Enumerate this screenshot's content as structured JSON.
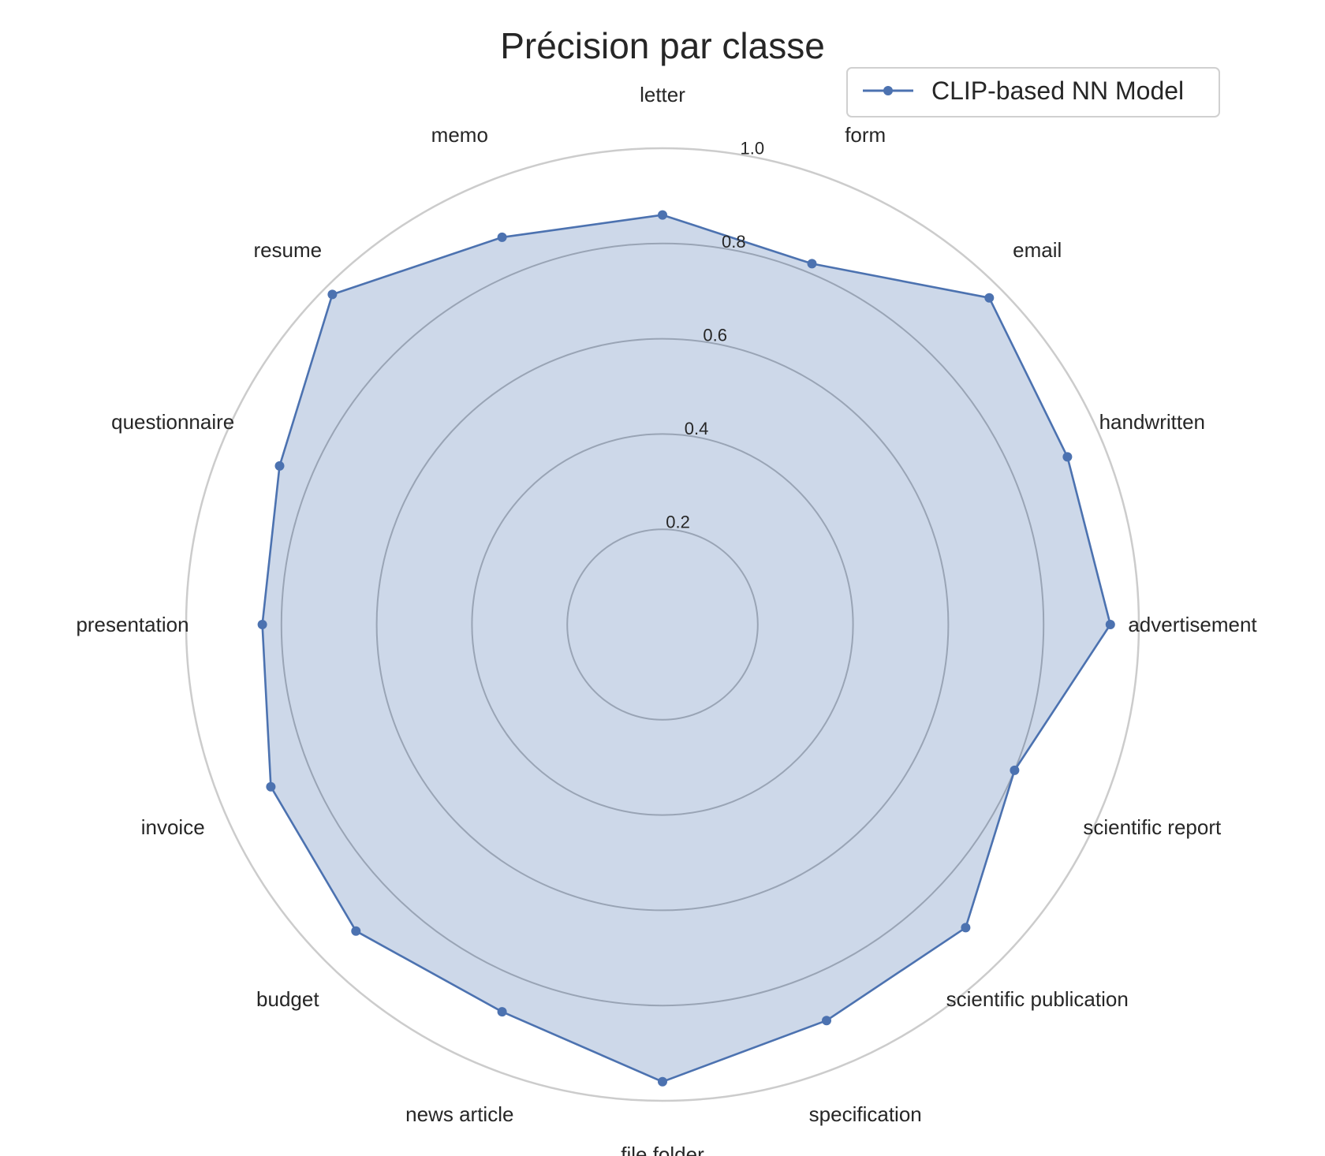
{
  "chart_data": {
    "type": "radar",
    "title": "Précision par classe",
    "categories": [
      "letter",
      "form",
      "email",
      "handwritten",
      "advertisement",
      "scientific report",
      "scientific publication",
      "specification",
      "file folder",
      "news article",
      "budget",
      "invoice",
      "presentation",
      "questionnaire",
      "resume",
      "memo"
    ],
    "series": [
      {
        "name": "CLIP-based NN Model",
        "values": [
          0.86,
          0.82,
          0.97,
          0.92,
          0.94,
          0.8,
          0.9,
          0.9,
          0.96,
          0.88,
          0.91,
          0.89,
          0.84,
          0.87,
          0.98,
          0.88
        ],
        "color": "#4c72b0",
        "fill_color": "#4c72b0",
        "fill_opacity": 0.28
      }
    ],
    "radial_ticks": [
      "0.2",
      "0.4",
      "0.6",
      "0.8",
      "1.0"
    ],
    "radial_tick_values": [
      0.2,
      0.4,
      0.6,
      0.8,
      1.0
    ],
    "rlim": [
      0,
      1.0
    ],
    "grid": true,
    "legend_position": "upper-right",
    "grid_color": "#b8b8b8",
    "outer_ring_color": "#cccccc"
  }
}
